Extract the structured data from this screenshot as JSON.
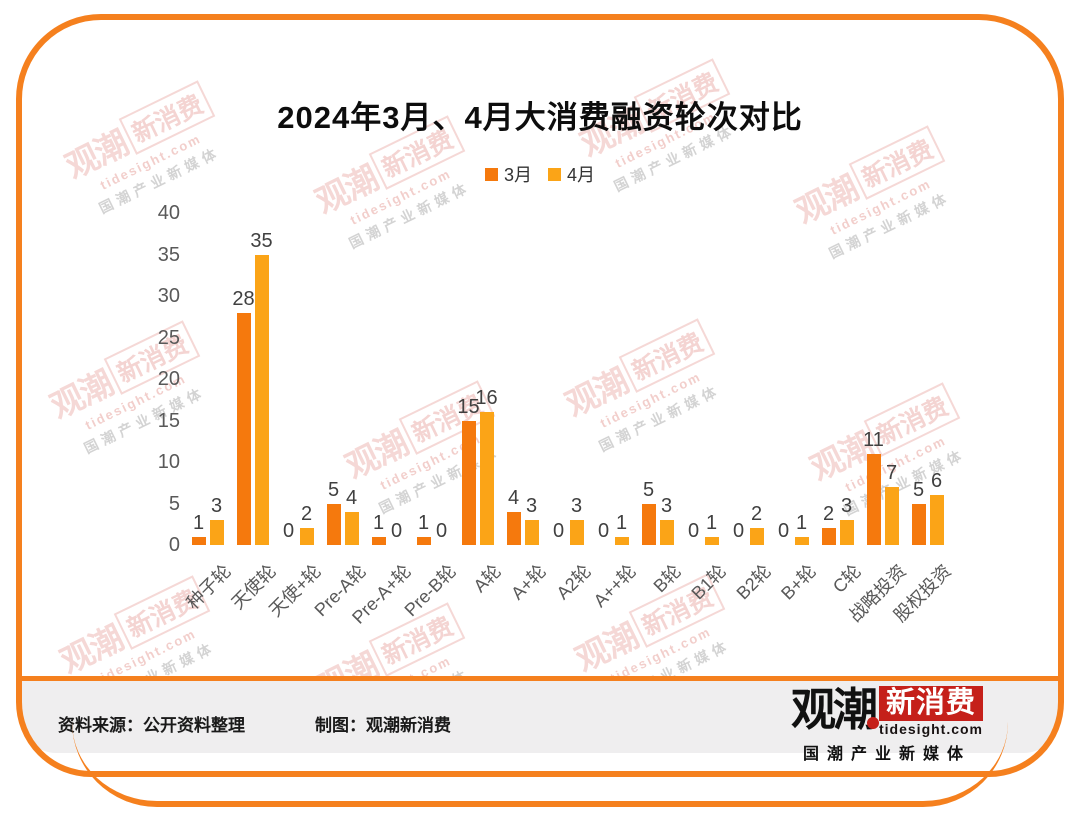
{
  "title": "2024年3月、4月大消费融资轮次对比",
  "chart_data": {
    "type": "bar",
    "title": "2024年3月、4月大消费融资轮次对比",
    "categories": [
      "种子轮",
      "天使轮",
      "天使+轮",
      "Pre-A轮",
      "Pre-A+轮",
      "Pre-B轮",
      "A轮",
      "A+轮",
      "A2轮",
      "A++轮",
      "B轮",
      "B1轮",
      "B2轮",
      "B+轮",
      "C轮",
      "战略投资",
      "股权投资"
    ],
    "series": [
      {
        "name": "3月",
        "color": "#F5790D",
        "values": [
          1,
          28,
          0,
          5,
          1,
          1,
          15,
          4,
          0,
          0,
          5,
          0,
          0,
          0,
          2,
          11,
          5
        ]
      },
      {
        "name": "4月",
        "color": "#FBA417",
        "values": [
          3,
          35,
          2,
          4,
          0,
          0,
          16,
          3,
          3,
          1,
          3,
          1,
          2,
          1,
          3,
          7,
          6
        ]
      }
    ],
    "xlabel": "",
    "ylabel": "",
    "ylim": [
      0,
      40
    ],
    "yticks": [
      0,
      5,
      10,
      15,
      20,
      25,
      30,
      35,
      40
    ],
    "grid": false,
    "legend_position": "top",
    "bar_value_labels": true
  },
  "footer": {
    "source": "资料来源：公开资料整理",
    "credit": "制图：观潮新消费"
  },
  "logo": {
    "name_black": "观潮",
    "name_boxed": "新消费",
    "domain": "tidesight.com",
    "tagline": "国潮产业新媒体"
  },
  "watermark": {
    "name_black": "观潮",
    "name_boxed": "新消费",
    "domain": "tidesight.com",
    "tagline": "国潮产业新媒体"
  },
  "colors": {
    "frame_orange": "#F5801E",
    "march_bar": "#F5790D",
    "april_bar": "#FBA417",
    "footer_bg": "#EFEEEF",
    "tick_label": "#595959",
    "value_label": "#404040",
    "logo_red": "#C5201A"
  }
}
